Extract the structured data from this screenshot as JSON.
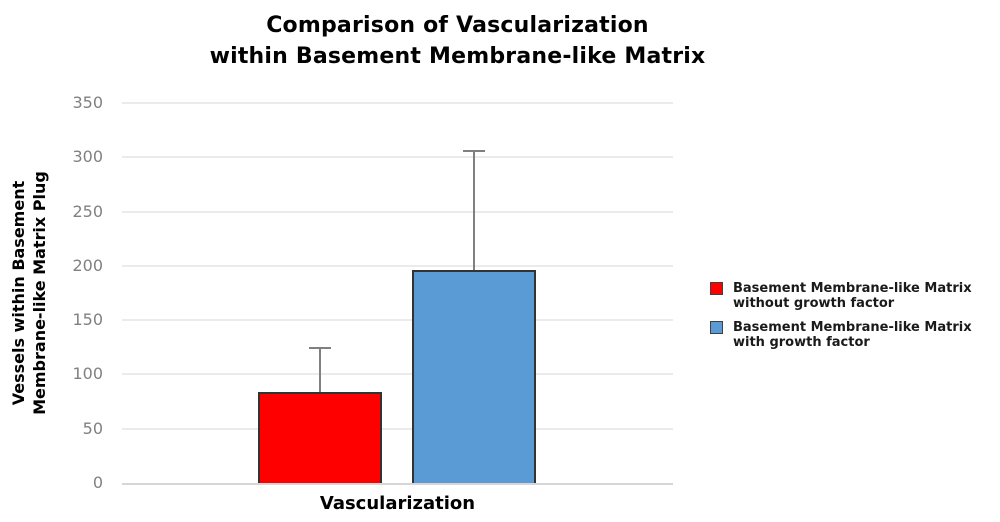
{
  "title": {
    "line1": "Comparison of Vascularization",
    "line2": "within Basement Membrane-like Matrix"
  },
  "y_axis": {
    "label": "Vessels within Basement\nMembrane-like Matrix Plug"
  },
  "x_axis": {
    "label": "Vascularization"
  },
  "legend": {
    "items": [
      {
        "label": "Basement Membrane-like Matrix\nwithout growth factor",
        "color": "#FF0000"
      },
      {
        "label": "Basement Membrane-like Matrix\nwith growth factor",
        "color": "#5B9BD5"
      }
    ]
  },
  "chart_data": {
    "type": "bar",
    "title": "Comparison of Vascularization within Basement Membrane-like Matrix",
    "categories": [
      "Vascularization"
    ],
    "series": [
      {
        "name": "Basement Membrane-like Matrix without growth factor",
        "values": [
          84
        ],
        "error_plus": [
          40
        ],
        "color": "#FF0000"
      },
      {
        "name": "Basement Membrane-like Matrix with growth factor",
        "values": [
          196
        ],
        "error_plus": [
          110
        ],
        "color": "#5B9BD5"
      }
    ],
    "xlabel": "Vascularization",
    "ylabel": "Vessels within Basement Membrane-like Matrix Plug",
    "ylim": [
      0,
      350
    ],
    "yticks": [
      0,
      50,
      100,
      150,
      200,
      250,
      300,
      350
    ],
    "grid": true,
    "legend_position": "right",
    "error_bar_color": "#808080"
  },
  "colors": {
    "background": "#FFFFFF",
    "bar_red": "#FF0000",
    "bar_blue": "#5B9BD5",
    "bar_border": "#333333",
    "gridline": "#EBEBEB",
    "axis_line": "#D6D6D6",
    "tick_label": "#808080",
    "error_bar": "#808080",
    "title_text": "#000000"
  }
}
